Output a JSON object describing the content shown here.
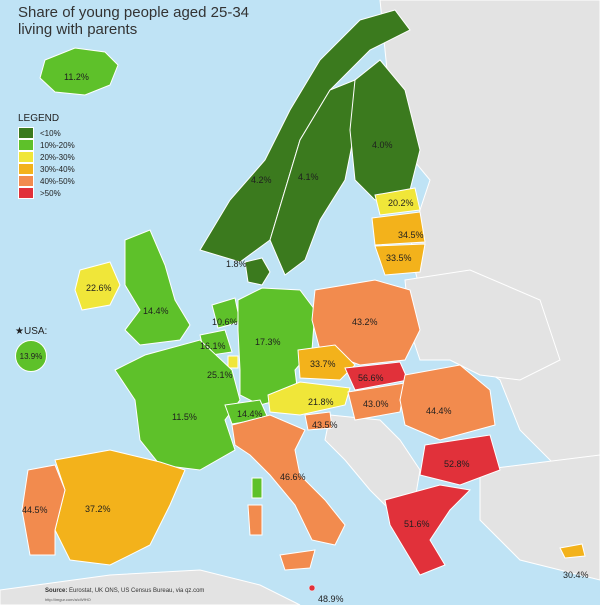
{
  "title_line1": "Share of young people aged 25-34",
  "title_line2": "living with parents",
  "legend": {
    "title": "LEGEND",
    "items": [
      {
        "label": "<10%",
        "color": "#3b7a1e"
      },
      {
        "label": "10%-20%",
        "color": "#5ec12a"
      },
      {
        "label": "20%-30%",
        "color": "#f0e639"
      },
      {
        "label": "30%-40%",
        "color": "#f3b21b"
      },
      {
        "label": "40%-50%",
        "color": "#f28b4e"
      },
      {
        "label": ">50%",
        "color": "#e1313a"
      }
    ]
  },
  "usa": {
    "label": "USA:",
    "value": "13.9%"
  },
  "source": {
    "prefix": "Source:",
    "text": "Eurostat, UK ONS, US Census Bureau, via qz.com",
    "url": "http://imgur.com/a/cWfHO"
  },
  "countries": {
    "iceland": "11.2%",
    "norway": "4.2%",
    "sweden": "4.1%",
    "finland": "4.0%",
    "denmark": "1.8%",
    "estonia": "20.2%",
    "latvia": "34.5%",
    "lithuania": "33.5%",
    "ireland": "22.6%",
    "uk": "14.4%",
    "netherlands": "10.6%",
    "belgium": "16.1%",
    "luxembourg": "25.1%",
    "germany": "17.3%",
    "poland": "43.2%",
    "czechia": "33.7%",
    "slovakia": "56.6%",
    "austria": "21.8%",
    "hungary": "43.0%",
    "romania": "44.4%",
    "france": "11.5%",
    "switzerland": "14.4%",
    "slovenia": "43.5%",
    "bulgaria": "52.8%",
    "italy": "46.6%",
    "greece": "51.6%",
    "spain": "37.2%",
    "portugal": "44.5%",
    "cyprus": "30.4%",
    "malta": "48.9%"
  }
}
